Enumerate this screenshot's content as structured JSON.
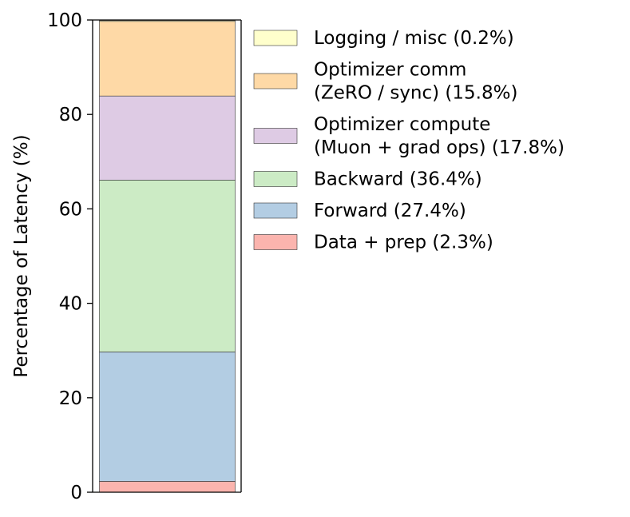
{
  "chart_data": {
    "type": "bar",
    "stacked": true,
    "title": "",
    "xlabel": "",
    "ylabel": "Percentage of Latency (%)",
    "ylim": [
      0,
      100
    ],
    "yticks": [
      "0",
      "20",
      "40",
      "60",
      "80",
      "100"
    ],
    "grid": false,
    "legend_position": "right",
    "categories": [
      ""
    ],
    "series": [
      {
        "name": "Data + prep (2.3%)",
        "values": [
          2.3
        ],
        "color": "#fbb4ae"
      },
      {
        "name": "Forward (27.4%)",
        "values": [
          27.4
        ],
        "color": "#b3cde3"
      },
      {
        "name": "Backward (36.4%)",
        "values": [
          36.4
        ],
        "color": "#ccebc5"
      },
      {
        "name": "Optimizer compute (Muon + grad ops) (17.8%)",
        "values": [
          17.8
        ],
        "color": "#decbe4"
      },
      {
        "name": "Optimizer comm (ZeRO / sync) (15.8%)",
        "values": [
          15.8
        ],
        "color": "#fed9a6"
      },
      {
        "name": "Logging / misc (0.2%)",
        "values": [
          0.2
        ],
        "color": "#ffffcc"
      }
    ],
    "legend": [
      {
        "lines": [
          "Logging / misc (0.2%)"
        ],
        "color": "#ffffcc"
      },
      {
        "lines": [
          "Optimizer comm",
          "(ZeRO / sync) (15.8%)"
        ],
        "color": "#fed9a6"
      },
      {
        "lines": [
          "Optimizer compute",
          "(Muon + grad ops) (17.8%)"
        ],
        "color": "#decbe4"
      },
      {
        "lines": [
          "Backward (36.4%)"
        ],
        "color": "#ccebc5"
      },
      {
        "lines": [
          "Forward (27.4%)"
        ],
        "color": "#b3cde3"
      },
      {
        "lines": [
          "Data + prep (2.3%)"
        ],
        "color": "#fbb4ae"
      }
    ]
  }
}
